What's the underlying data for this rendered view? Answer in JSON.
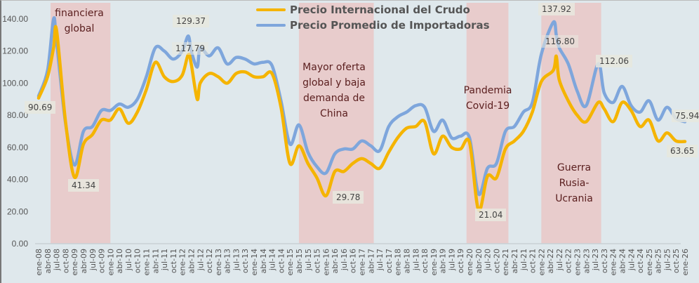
{
  "chart_data": {
    "type": "line",
    "title": "",
    "xlabel": "",
    "ylabel": "",
    "ylim": [
      0,
      140
    ],
    "y_ticks": [
      "0.00",
      "20.00",
      "40.00",
      "60.00",
      "80.00",
      "100.00",
      "120.00",
      "140.00"
    ],
    "y_tick_values": [
      0,
      20,
      40,
      60,
      80,
      100,
      120,
      140
    ],
    "grid": false,
    "legend_position": "top-center",
    "x_ticks": [
      "ene-08",
      "abr-08",
      "jul-08",
      "oct-08",
      "ene-09",
      "abr-09",
      "jul-09",
      "oct-09",
      "ene-10",
      "abr-10",
      "jul-10",
      "oct-10",
      "ene-11",
      "abr-11",
      "jul-11",
      "oct-11",
      "ene-12",
      "abr-12",
      "jul-12",
      "oct-12",
      "ene-13",
      "abr-13",
      "jul-13",
      "oct-13",
      "ene-14",
      "abr-14",
      "jul-14",
      "oct-14",
      "ene-15",
      "abr-15",
      "jul-15",
      "oct-15",
      "ene-16",
      "abr-16",
      "jul-16",
      "oct-16",
      "ene-17",
      "abr-17",
      "jul-17",
      "oct-17",
      "ene-18",
      "abr-18",
      "jul-18",
      "oct-18",
      "ene-19",
      "abr-19",
      "jul-19",
      "oct-19",
      "ene-20",
      "abr-20",
      "jul-20",
      "oct-20",
      "ene-21",
      "abr-21",
      "jul-21",
      "oct-21",
      "ene-22",
      "abr-22",
      "jul-22",
      "oct-22",
      "ene-23",
      "abr-23",
      "jul-23",
      "oct-23",
      "ene-24",
      "abr-24",
      "jul-24",
      "oct-24",
      "ene-25",
      "abr-25",
      "jul-25",
      "oct-25",
      "ene-26"
    ],
    "x": [
      "ene-08",
      "abr-08",
      "jun-08",
      "jul-08",
      "oct-08",
      "ene-09",
      "abr-09",
      "jul-09",
      "oct-09",
      "ene-10",
      "abr-10",
      "jul-10",
      "oct-10",
      "ene-11",
      "abr-11",
      "jul-11",
      "oct-11",
      "ene-12",
      "mar-12",
      "abr-12",
      "jun-12",
      "jul-12",
      "oct-12",
      "ene-13",
      "abr-13",
      "jul-13",
      "oct-13",
      "ene-14",
      "abr-14",
      "jul-14",
      "oct-14",
      "ene-15",
      "abr-15",
      "jul-15",
      "oct-15",
      "ene-16",
      "abr-16",
      "jul-16",
      "oct-16",
      "ene-17",
      "abr-17",
      "jul-17",
      "oct-17",
      "ene-18",
      "abr-18",
      "jul-18",
      "oct-18",
      "ene-19",
      "abr-19",
      "jul-19",
      "oct-19",
      "ene-20",
      "abr-20",
      "jul-20",
      "oct-20",
      "ene-21",
      "abr-21",
      "jul-21",
      "oct-21",
      "ene-22",
      "may-22",
      "jun-22",
      "jul-22",
      "oct-22",
      "ene-23",
      "abr-23",
      "ago-23",
      "oct-23",
      "ene-24",
      "abr-24",
      "jul-24",
      "oct-24",
      "ene-25",
      "abr-25",
      "jul-25",
      "oct-25",
      "ene-26"
    ],
    "series": [
      {
        "name": "Precio Internacional del Crudo",
        "color": "#f5b400",
        "values": [
          90.69,
          104,
          122,
          133,
          76,
          41.34,
          62,
          68,
          77,
          77,
          84,
          75,
          82,
          96,
          113,
          104,
          101,
          105,
          117.79,
          112,
          90,
          100,
          106,
          104,
          100,
          106,
          107,
          104,
          104,
          106,
          85,
          50,
          61,
          50,
          41,
          29.78,
          45,
          45,
          50,
          53,
          50,
          47,
          57,
          66,
          72,
          73,
          76,
          56,
          67,
          60,
          59,
          63,
          21.04,
          42,
          41,
          59,
          64,
          70,
          82,
          101,
          108,
          116.8,
          102,
          89,
          80,
          76,
          88,
          84,
          76,
          88,
          83,
          73,
          77,
          64,
          69,
          64,
          63.65
        ]
      },
      {
        "name": "Precio Promedio de Importadoras",
        "color": "#7ea6dc",
        "values": [
          92,
          108,
          140,
          126,
          75,
          49,
          70,
          73,
          83,
          83,
          87,
          85,
          90,
          104,
          122,
          120,
          115,
          120,
          129.37,
          120,
          110,
          122,
          117,
          122,
          112,
          116,
          115,
          112,
          113,
          111,
          89,
          62,
          74,
          57,
          48,
          44,
          56,
          59,
          59,
          64,
          61,
          58,
          73,
          79,
          82,
          86,
          85,
          70,
          77,
          66,
          67,
          66,
          31,
          47,
          50,
          70,
          73,
          82,
          88,
          118,
          137.92,
          130,
          122,
          112,
          95,
          86,
          112.06,
          94,
          88,
          98,
          86,
          82,
          89,
          77,
          85,
          78,
          75.94
        ]
      }
    ],
    "shaded_periods": [
      {
        "label_lines": [
          "financiera",
          "global"
        ],
        "start": "may-08",
        "end": "dic-09"
      },
      {
        "label_lines": [
          "Mayor oferta",
          "global y baja",
          "demanda de",
          "China"
        ],
        "start": "abr-15",
        "end": "abr-17"
      },
      {
        "label_lines": [
          "Pandemia",
          "Covid-19"
        ],
        "start": "dic-19",
        "end": "ene-21"
      },
      {
        "label_lines": [
          "Guerra",
          "Rusia-",
          "Ucrania"
        ],
        "start": "ene-22",
        "end": "ago-23"
      }
    ],
    "annotations": [
      "90.69",
      "41.34",
      "129.37",
      "117.79",
      "29.78",
      "21.04",
      "137.92",
      "116.80",
      "112.06",
      "75.94",
      "63.65"
    ],
    "band_color": "#e8cccc",
    "background": "#dfe8ec"
  }
}
